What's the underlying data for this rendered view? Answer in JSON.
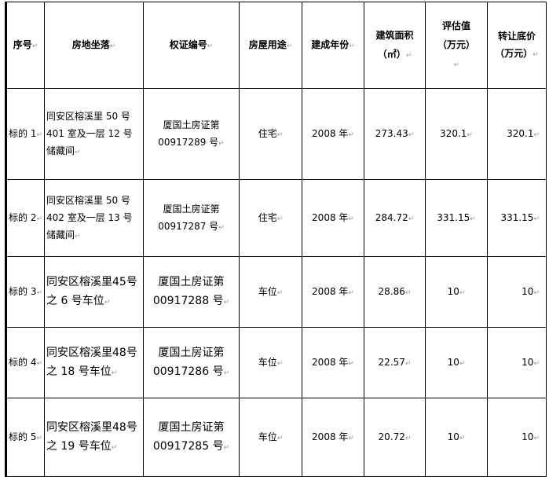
{
  "headers": [
    "序号",
    "房地坐落",
    "权证编号",
    "房屋用途",
    "建成年份",
    "建筑面积（㎡）",
    "评估值（万元）",
    "转让底价（万元）"
  ],
  "header_lines": {
    "area": [
      "建筑面积",
      "（㎡）"
    ],
    "valuation": [
      "评估值",
      "（万元）"
    ],
    "reserve": [
      "转让底价",
      "（万元）"
    ]
  },
  "rows": [
    {
      "no": "标的 1",
      "location": "同安区榕溪里 50 号 401 室及一层 12 号储藏间",
      "cert": [
        "厦国土房证第",
        "00917289 号"
      ],
      "use": "住宅",
      "year": "2008 年",
      "area": "273.43",
      "valuation": "320.1",
      "reserve": "320.1"
    },
    {
      "no": "标的 2",
      "location": "同安区榕溪里 50 号 402 室及一层 13 号储藏间",
      "cert": [
        "厦国土房证第",
        "00917287 号"
      ],
      "use": "住宅",
      "year": "2008 年",
      "area": "284.72",
      "valuation": "331.15",
      "reserve": "331.15"
    },
    {
      "no": "标的 3",
      "location": "同安区榕溪里45号之 6 号车位",
      "cert": [
        "厦国土房证第",
        "00917288 号"
      ],
      "use": "车位",
      "year": "2008 年",
      "area": "28.86",
      "valuation": "10",
      "reserve": "10"
    },
    {
      "no": "标的 4",
      "location": "同安区榕溪里48号之 18 号车位",
      "cert": [
        "厦国土房证第",
        "00917286 号"
      ],
      "use": "车位",
      "year": "2008 年",
      "area": "22.57",
      "valuation": "10",
      "reserve": "10"
    },
    {
      "no": "标的 5",
      "location": "同安区榕溪里48号之 19 号车位",
      "cert": [
        "厦国土房证第",
        "00917285 号"
      ],
      "use": "车位",
      "year": "2008 年",
      "area": "20.72",
      "valuation": "10",
      "reserve": "10"
    }
  ]
}
